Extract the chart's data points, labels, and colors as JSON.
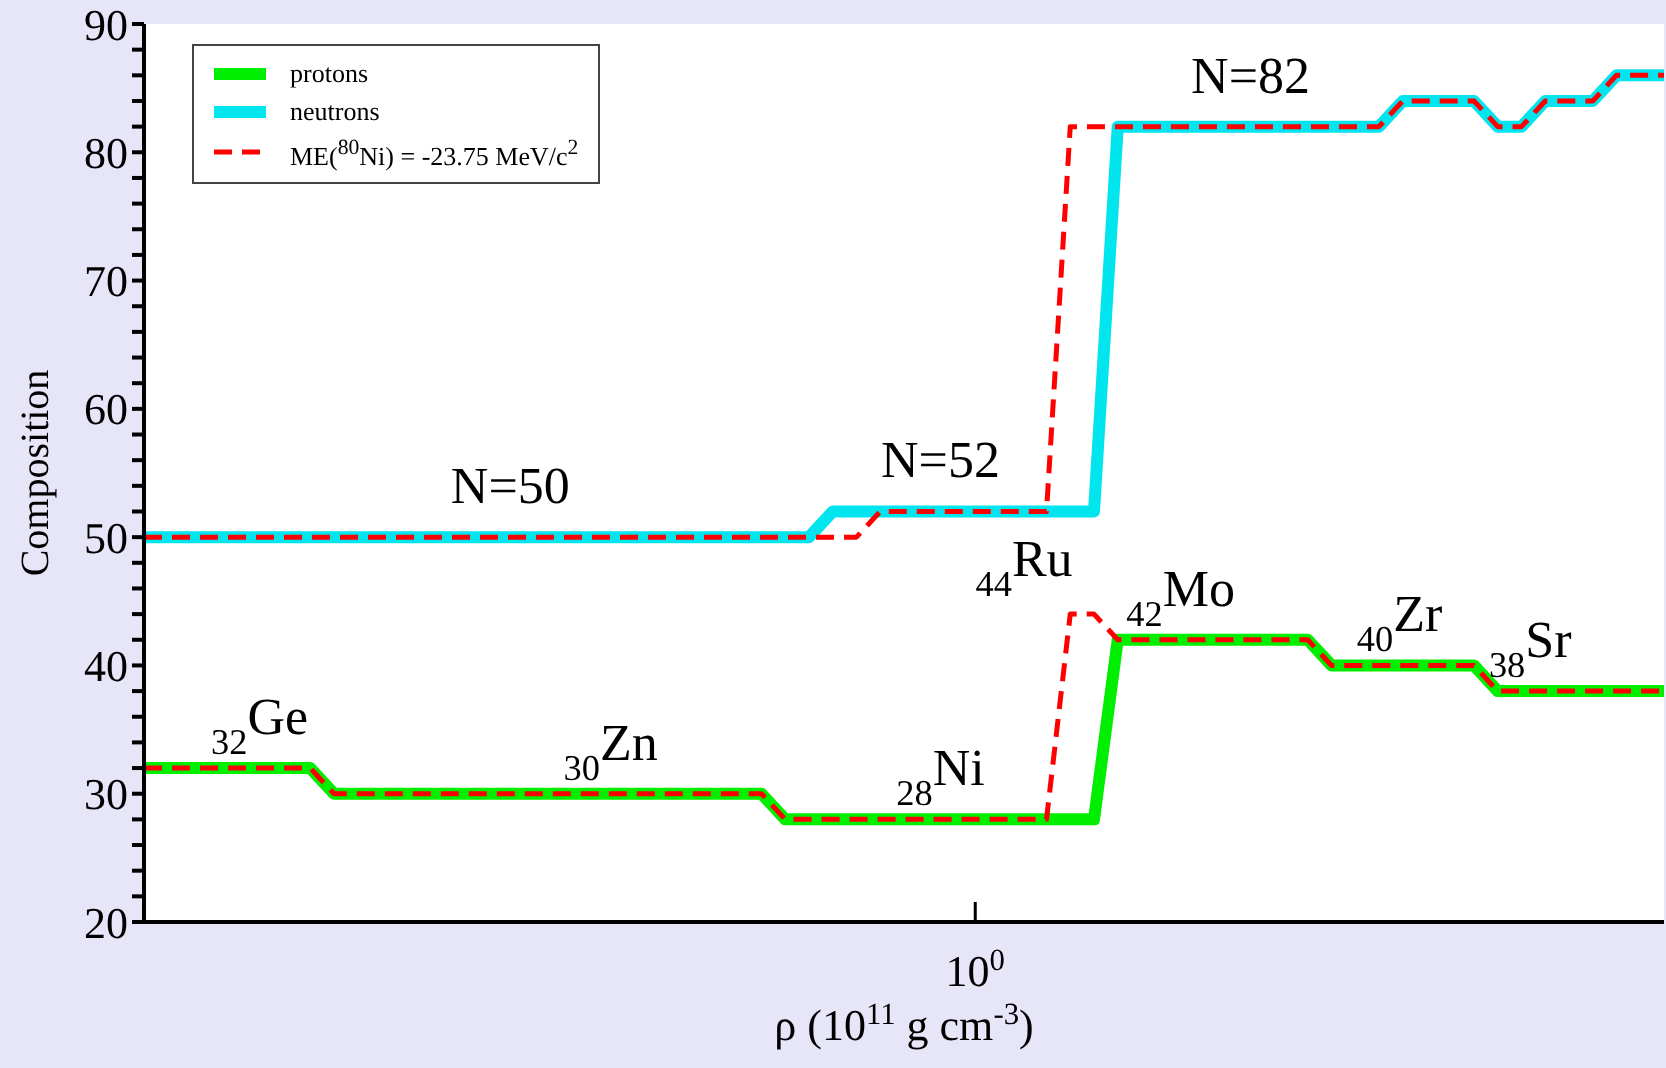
{
  "chart_data": {
    "type": "line",
    "xlabel": "ρ (10$^{11}$ g cm$^{-3}$)",
    "ylabel": "Composition",
    "categories": [
      null,
      null,
      null,
      null,
      null,
      null,
      null,
      null,
      null,
      null,
      null,
      null,
      null,
      null,
      null,
      null,
      null,
      null,
      null,
      null,
      null,
      null,
      null,
      null,
      null,
      null,
      null,
      null,
      null,
      null,
      null,
      null,
      null,
      null,
      null,
      "10$^{0}$",
      null,
      null,
      null,
      null,
      null,
      null,
      null,
      null,
      null,
      null,
      null,
      null,
      null,
      null,
      null,
      null,
      null,
      null,
      null,
      null,
      null,
      null,
      null,
      null,
      null,
      null,
      null,
      null,
      null
    ],
    "ylim": [
      20,
      90
    ],
    "yticks": [
      20,
      {
        "value": 22,
        "label": null
      },
      {
        "value": 24,
        "label": null
      },
      {
        "value": 26,
        "label": null
      },
      {
        "value": 28,
        "label": null
      },
      30,
      {
        "value": 32,
        "label": null
      },
      {
        "value": 34,
        "label": null
      },
      {
        "value": 36,
        "label": null
      },
      {
        "value": 38,
        "label": null
      },
      40,
      {
        "value": 42,
        "label": null
      },
      {
        "value": 44,
        "label": null
      },
      {
        "value": 46,
        "label": null
      },
      {
        "value": 48,
        "label": null
      },
      50,
      {
        "value": 52,
        "label": null
      },
      {
        "value": 54,
        "label": null
      },
      {
        "value": 56,
        "label": null
      },
      {
        "value": 58,
        "label": null
      },
      60,
      {
        "value": 62,
        "label": null
      },
      {
        "value": 64,
        "label": null
      },
      {
        "value": 66,
        "label": null
      },
      {
        "value": 68,
        "label": null
      },
      70,
      {
        "value": 72,
        "label": null
      },
      {
        "value": 74,
        "label": null
      },
      {
        "value": 76,
        "label": null
      },
      {
        "value": 78,
        "label": null
      },
      80,
      {
        "value": 82,
        "label": null
      },
      {
        "value": 84,
        "label": null
      },
      {
        "value": 86,
        "label": null
      },
      {
        "value": 88,
        "label": null
      },
      90
    ],
    "grid": false,
    "legend": "top left",
    "marker": "none",
    "series": [
      {
        "name": "protons",
        "color": "#00ee00",
        "values": [
          32,
          32,
          32,
          32,
          32,
          32,
          32,
          32,
          30,
          30,
          30,
          30,
          30,
          30,
          30,
          30,
          30,
          30,
          30,
          30,
          30,
          30,
          30,
          30,
          30,
          30,
          30,
          28,
          28,
          28,
          28,
          28,
          28,
          28,
          28,
          28,
          28,
          28,
          28,
          28,
          28,
          42,
          42,
          42,
          42,
          42,
          42,
          42,
          42,
          42,
          40,
          40,
          40,
          40,
          40,
          40,
          40,
          38,
          38,
          38,
          38,
          38,
          38,
          38,
          38
        ]
      },
      {
        "name": "neutrons",
        "color": "#00e5ee",
        "values": [
          50,
          50,
          50,
          50,
          50,
          50,
          50,
          50,
          50,
          50,
          50,
          50,
          50,
          50,
          50,
          50,
          50,
          50,
          50,
          50,
          50,
          50,
          50,
          50,
          50,
          50,
          50,
          50,
          50,
          52,
          52,
          52,
          52,
          52,
          52,
          52,
          52,
          52,
          52,
          52,
          52,
          82,
          82,
          82,
          82,
          82,
          82,
          82,
          82,
          82,
          82,
          82,
          82,
          84,
          84,
          84,
          84,
          82,
          82,
          84,
          84,
          84,
          86,
          86,
          86
        ]
      },
      {
        "name": "ME($^{80}$Ni) = -23.75 MeV/c$^{2}$",
        "color": "#ff0000",
        "line_style": "dashed",
        "values": [
          32,
          32,
          32,
          32,
          32,
          32,
          32,
          32,
          30,
          30,
          30,
          30,
          30,
          30,
          30,
          30,
          30,
          30,
          30,
          30,
          30,
          30,
          30,
          30,
          30,
          30,
          30,
          28,
          28,
          28,
          28,
          28,
          28,
          28,
          28,
          28,
          28,
          28,
          28,
          44,
          44,
          42,
          42,
          42,
          42,
          42,
          42,
          42,
          42,
          42,
          40,
          40,
          40,
          40,
          40,
          40,
          40,
          38,
          38,
          38,
          38,
          38,
          38,
          38,
          38
        ]
      },
      {
        "color": "#ff0000",
        "line_style": "dashed",
        "values": [
          50,
          50,
          50,
          50,
          50,
          50,
          50,
          50,
          50,
          50,
          50,
          50,
          50,
          50,
          50,
          50,
          50,
          50,
          50,
          50,
          50,
          50,
          50,
          50,
          50,
          50,
          50,
          50,
          50,
          50,
          50,
          52,
          52,
          52,
          52,
          52,
          52,
          52,
          52,
          82,
          82,
          82,
          82,
          82,
          82,
          82,
          82,
          82,
          82,
          82,
          82,
          82,
          82,
          84,
          84,
          84,
          84,
          82,
          82,
          84,
          84,
          84,
          86,
          86,
          86
        ]
      }
    ],
    "annotations": [
      {
        "text": "N=50",
        "y": 50
      },
      {
        "text": "N=52",
        "y": 52
      },
      {
        "text": "N=82",
        "y": 82
      },
      {
        "text": "$_{32}$Ge",
        "y": 32
      },
      {
        "text": "$_{30}$Zn",
        "y": 30
      },
      {
        "text": "$_{28}$Ni",
        "y": 28
      },
      "$_{44}$Ru",
      {
        "text": "$_{42}$Mo",
        "y": 42
      },
      {
        "text": "$_{40}$Zr",
        "y": 40
      },
      {
        "text": "$_{38}$Sr",
        "y": 38
      }
    ]
  }
}
